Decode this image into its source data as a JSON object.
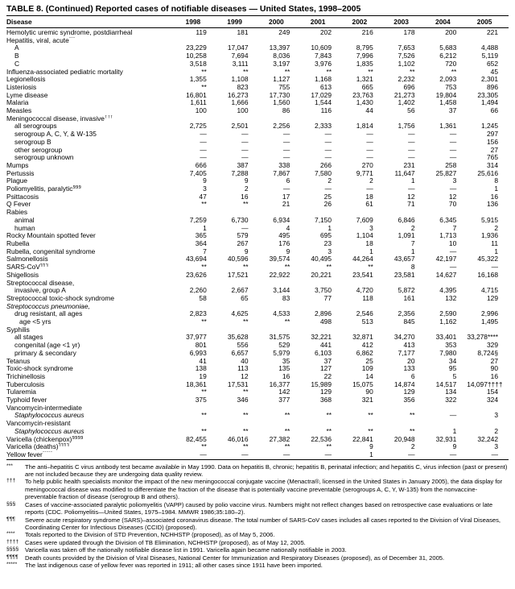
{
  "title": "TABLE 8. (Continued) Reported cases of notifiable diseases — United States, 1998–2005",
  "table": {
    "columns": [
      "Disease",
      "1998",
      "1999",
      "2000",
      "2001",
      "2002",
      "2003",
      "2004",
      "2005"
    ],
    "rows": [
      {
        "label": "Hemolytic uremic syndrome, postdiarrheal",
        "indent": 0,
        "values": [
          "119",
          "181",
          "249",
          "202",
          "216",
          "178",
          "200",
          "221"
        ]
      },
      {
        "label": "Hepatitis, viral, acute",
        "sup": "***",
        "indent": 0,
        "values": []
      },
      {
        "label": "A",
        "indent": 1,
        "values": [
          "23,229",
          "17,047",
          "13,397",
          "10,609",
          "8,795",
          "7,653",
          "5,683",
          "4,488"
        ]
      },
      {
        "label": "B",
        "indent": 1,
        "values": [
          "10,258",
          "7,694",
          "8,036",
          "7,843",
          "7,996",
          "7,526",
          "6,212",
          "5,119"
        ]
      },
      {
        "label": "C",
        "indent": 1,
        "values": [
          "3,518",
          "3,111",
          "3,197",
          "3,976",
          "1,835",
          "1,102",
          "720",
          "652"
        ]
      },
      {
        "label": "Influenza-associated pediatric mortality",
        "indent": 0,
        "values": [
          "**",
          "**",
          "**",
          "**",
          "**",
          "**",
          "**",
          "45"
        ]
      },
      {
        "label": "Legionellosis",
        "indent": 0,
        "values": [
          "1,355",
          "1,108",
          "1,127",
          "1,168",
          "1,321",
          "2,232",
          "2,093",
          "2,301"
        ]
      },
      {
        "label": "Listeriosis",
        "indent": 0,
        "values": [
          "**",
          "823",
          "755",
          "613",
          "665",
          "696",
          "753",
          "896"
        ]
      },
      {
        "label": "Lyme disease",
        "indent": 0,
        "values": [
          "16,801",
          "16,273",
          "17,730",
          "17,029",
          "23,763",
          "21,273",
          "19,804",
          "23,305"
        ]
      },
      {
        "label": "Malaria",
        "indent": 0,
        "values": [
          "1,611",
          "1,666",
          "1,560",
          "1,544",
          "1,430",
          "1,402",
          "1,458",
          "1,494"
        ]
      },
      {
        "label": "Measles",
        "indent": 0,
        "values": [
          "100",
          "100",
          "86",
          "116",
          "44",
          "56",
          "37",
          "66"
        ]
      },
      {
        "label": "Meningococcal disease, invasive",
        "sup": "†††",
        "indent": 0,
        "values": []
      },
      {
        "label": "all serogroups",
        "indent": 1,
        "values": [
          "2,725",
          "2,501",
          "2,256",
          "2,333",
          "1,814",
          "1,756",
          "1,361",
          "1,245"
        ]
      },
      {
        "label": "serogroup A, C, Y, & W-135",
        "indent": 1,
        "values": [
          "—",
          "—",
          "—",
          "—",
          "—",
          "—",
          "—",
          "297"
        ]
      },
      {
        "label": "serogroup B",
        "indent": 1,
        "values": [
          "—",
          "—",
          "—",
          "—",
          "—",
          "—",
          "—",
          "156"
        ]
      },
      {
        "label": "other serogroup",
        "indent": 1,
        "values": [
          "—",
          "—",
          "—",
          "—",
          "—",
          "—",
          "—",
          "27"
        ]
      },
      {
        "label": "serogroup unknown",
        "indent": 1,
        "values": [
          "—",
          "—",
          "—",
          "—",
          "—",
          "—",
          "—",
          "765"
        ]
      },
      {
        "label": "Mumps",
        "indent": 0,
        "values": [
          "666",
          "387",
          "338",
          "266",
          "270",
          "231",
          "258",
          "314"
        ]
      },
      {
        "label": "Pertussis",
        "indent": 0,
        "values": [
          "7,405",
          "7,288",
          "7,867",
          "7,580",
          "9,771",
          "11,647",
          "25,827",
          "25,616"
        ]
      },
      {
        "label": "Plague",
        "indent": 0,
        "values": [
          "9",
          "9",
          "6",
          "2",
          "2",
          "1",
          "3",
          "8"
        ]
      },
      {
        "label": "Poliomyelitis, paralytic",
        "sup": "§§§",
        "indent": 0,
        "values": [
          "3",
          "2",
          "—",
          "—",
          "—",
          "—",
          "—",
          "1"
        ]
      },
      {
        "label": "Psittacosis",
        "indent": 0,
        "values": [
          "47",
          "16",
          "17",
          "25",
          "18",
          "12",
          "12",
          "16"
        ]
      },
      {
        "label": "Q Fever",
        "indent": 0,
        "values": [
          "**",
          "**",
          "21",
          "26",
          "61",
          "71",
          "70",
          "136"
        ]
      },
      {
        "label": "Rabies",
        "indent": 0,
        "values": []
      },
      {
        "label": "animal",
        "indent": 1,
        "values": [
          "7,259",
          "6,730",
          "6,934",
          "7,150",
          "7,609",
          "6,846",
          "6,345",
          "5,915"
        ]
      },
      {
        "label": "human",
        "indent": 1,
        "values": [
          "1",
          "—",
          "4",
          "1",
          "3",
          "2",
          "7",
          "2"
        ]
      },
      {
        "label": "Rocky Mountain spotted fever",
        "indent": 0,
        "values": [
          "365",
          "579",
          "495",
          "695",
          "1,104",
          "1,091",
          "1,713",
          "1,936"
        ]
      },
      {
        "label": "Rubella",
        "indent": 0,
        "values": [
          "364",
          "267",
          "176",
          "23",
          "18",
          "7",
          "10",
          "11"
        ]
      },
      {
        "label": "Rubella, congenital syndrome",
        "indent": 0,
        "values": [
          "7",
          "9",
          "9",
          "3",
          "1",
          "1",
          "—",
          "1"
        ]
      },
      {
        "label": "Salmonellosis",
        "indent": 0,
        "values": [
          "43,694",
          "40,596",
          "39,574",
          "40,495",
          "44,264",
          "43,657",
          "42,197",
          "45,322"
        ]
      },
      {
        "label": "SARS-CoV",
        "sup": "¶¶¶",
        "indent": 0,
        "values": [
          "**",
          "**",
          "**",
          "**",
          "**",
          "8",
          "—",
          "—"
        ]
      },
      {
        "label": "Shigellosis",
        "indent": 0,
        "values": [
          "23,626",
          "17,521",
          "22,922",
          "20,221",
          "23,541",
          "23,581",
          "14,627",
          "16,168"
        ]
      },
      {
        "label": "Streptococcal disease,",
        "indent": 0,
        "values": []
      },
      {
        "label": "invasive, group A",
        "indent": 1,
        "values": [
          "2,260",
          "2,667",
          "3,144",
          "3,750",
          "4,720",
          "5,872",
          "4,395",
          "4,715"
        ]
      },
      {
        "label": "Streptococcal toxic-shock syndrome",
        "indent": 0,
        "values": [
          "58",
          "65",
          "83",
          "77",
          "118",
          "161",
          "132",
          "129"
        ]
      },
      {
        "label": "Streptococcus pneumoniae,",
        "indent": 0,
        "italic": true,
        "values": []
      },
      {
        "label": "drug resistant, all ages",
        "indent": 1,
        "values": [
          "2,823",
          "4,625",
          "4,533",
          "2,896",
          "2,546",
          "2,356",
          "2,590",
          "2,996"
        ]
      },
      {
        "label": "age <5 yrs",
        "indent": 2,
        "values": [
          "**",
          "**",
          "**",
          "498",
          "513",
          "845",
          "1,162",
          "1,495"
        ]
      },
      {
        "label": "Syphilis",
        "indent": 0,
        "values": []
      },
      {
        "label": "all stages",
        "indent": 1,
        "values": [
          "37,977",
          "35,628",
          "31,575",
          "32,221",
          "32,871",
          "34,270",
          "33,401",
          "33,278****"
        ]
      },
      {
        "label": "congenital (age <1 yr)",
        "indent": 1,
        "values": [
          "801",
          "556",
          "529",
          "441",
          "412",
          "413",
          "353",
          "329"
        ]
      },
      {
        "label": "primary & secondary",
        "indent": 1,
        "values": [
          "6,993",
          "6,657",
          "5,979",
          "6,103",
          "6,862",
          "7,177",
          "7,980",
          "8,724§"
        ]
      },
      {
        "label": "Tetanus",
        "indent": 0,
        "values": [
          "41",
          "40",
          "35",
          "37",
          "25",
          "20",
          "34",
          "27"
        ]
      },
      {
        "label": "Toxic-shock syndrome",
        "indent": 0,
        "values": [
          "138",
          "113",
          "135",
          "127",
          "109",
          "133",
          "95",
          "90"
        ]
      },
      {
        "label": "Trichinellosis",
        "indent": 0,
        "values": [
          "19",
          "12",
          "16",
          "22",
          "14",
          "6",
          "5",
          "16"
        ]
      },
      {
        "label": "Tuberculosis",
        "indent": 0,
        "values": [
          "18,361",
          "17,531",
          "16,377",
          "15,989",
          "15,075",
          "14,874",
          "14,517",
          "14,097††††"
        ]
      },
      {
        "label": "Tularemia",
        "indent": 0,
        "values": [
          "**",
          "**",
          "142",
          "129",
          "90",
          "129",
          "134",
          "154"
        ]
      },
      {
        "label": "Typhoid fever",
        "indent": 0,
        "values": [
          "375",
          "346",
          "377",
          "368",
          "321",
          "356",
          "322",
          "324"
        ]
      },
      {
        "label": "Vancomycin-intermediate",
        "indent": 0,
        "values": []
      },
      {
        "label": "Staphylococcus aureus",
        "indent": 1,
        "italic": true,
        "values": [
          "**",
          "**",
          "**",
          "**",
          "**",
          "**",
          "—",
          "3"
        ]
      },
      {
        "label": "Vancomycin-resistant",
        "indent": 0,
        "values": []
      },
      {
        "label": "Staphylococcus aureus",
        "indent": 1,
        "italic": true,
        "values": [
          "**",
          "**",
          "**",
          "**",
          "**",
          "**",
          "1",
          "2"
        ]
      },
      {
        "label": "Varicella (chickenpox)",
        "sup": "§§§§",
        "indent": 0,
        "values": [
          "82,455",
          "46,016",
          "27,382",
          "22,536",
          "22,841",
          "20,948",
          "32,931",
          "32,242"
        ]
      },
      {
        "label": "Varicella (deaths)",
        "sup": "¶¶¶¶",
        "indent": 0,
        "values": [
          "**",
          "**",
          "**",
          "**",
          "9",
          "2",
          "9",
          "3"
        ]
      },
      {
        "label": "Yellow fever",
        "sup": "*****",
        "indent": 0,
        "values": [
          "—",
          "—",
          "—",
          "—",
          "1",
          "—",
          "—",
          "—"
        ]
      }
    ]
  },
  "footnotes": [
    {
      "marker": "***",
      "text": "The anti–hepatitis C virus antibody test became available in May 1990. Data on hepatitis B, chronic; hepatitis B, perinatal infection; and hepatitis C, virus infection (past or present) are not included because they are undergoing data quality review."
    },
    {
      "marker": "†††",
      "text": "To help public health specialists monitor the impact of the new meningococcal conjugate vaccine (Menactra®, licensed in the United States in January 2005), the data display for meningococcal disease was modified to differentiate the fraction of the disease that is potentially vaccine preventable (serogroups A, C, Y, W-135) from the nonvaccine-preventable fraction of disease (serogroup B and others)."
    },
    {
      "marker": "§§§",
      "text": "Cases of vaccine-associated paralytic poliomyelitis (VAPP) caused by polio vaccine virus. Numbers might not reflect changes based on retrospective case evaluations or late reports (CDC. Poliomyelitis—United States, 1975–1984. MMWR 1986;35:180–2)."
    },
    {
      "marker": "¶¶¶",
      "text": "Severe acute respiratory syndrome (SARS)–associated coronavirus disease. The total number of SARS-CoV cases includes all cases reported to the Division of Viral Diseases, Coordinating Center for Infectious Diseases (CCID) (proposed)."
    },
    {
      "marker": "****",
      "text": "Totals reported to the Division of STD Prevention, NCHHSTP (proposed), as of May 5, 2006."
    },
    {
      "marker": "††††",
      "text": "Cases were updated through the Division of TB Elimination, NCHHSTP (proposed), as of May 12, 2005."
    },
    {
      "marker": "§§§§",
      "text": "Varicella was taken off the nationally notifiable disease list in 1991. Varicella again became nationally notifiable in 2003."
    },
    {
      "marker": "¶¶¶¶",
      "text": "Death counts provided by the Division of Viral Diseases, National Center for Immunization and Respiratory Diseases (proposed), as of December 31, 2005."
    },
    {
      "marker": "*****",
      "text": "The last indigenous case of yellow fever was reported in 1911; all other cases since 1911 have been imported."
    }
  ]
}
